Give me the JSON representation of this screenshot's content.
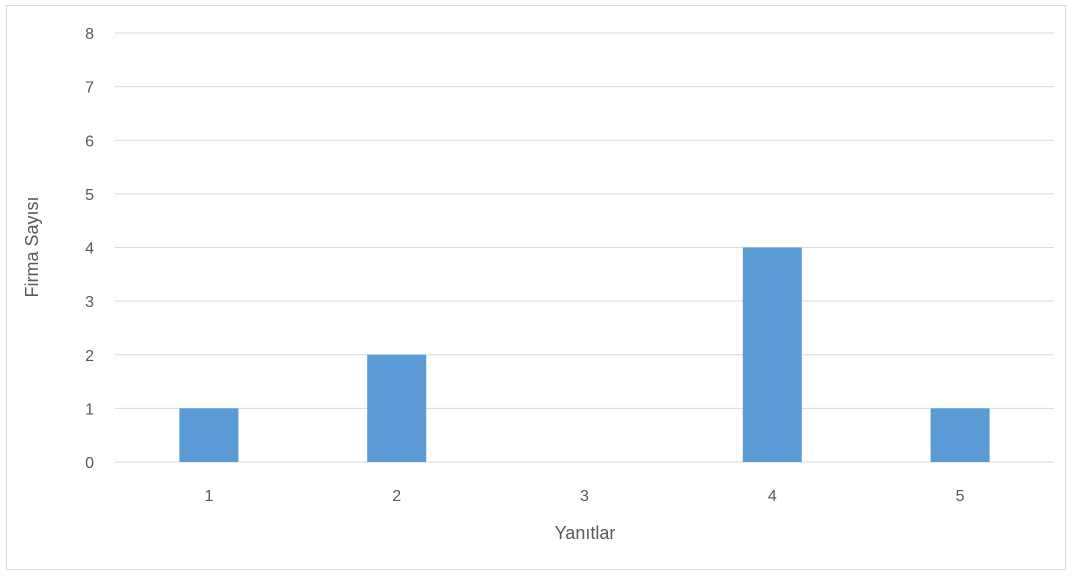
{
  "chart_data": {
    "type": "bar",
    "categories": [
      "1",
      "2",
      "3",
      "4",
      "5"
    ],
    "values": [
      1,
      2,
      0,
      4,
      1
    ],
    "title": "",
    "xlabel": "Yanıtlar",
    "ylabel": "Firma Sayısı",
    "ylim": [
      0,
      8
    ],
    "yticks": [
      "0",
      "1",
      "2",
      "3",
      "4",
      "5",
      "6",
      "7",
      "8"
    ],
    "grid": true,
    "legend": "none",
    "bar_color": "#5b9bd5",
    "grid_color": "#d9d9d9",
    "text_color": "#595959"
  }
}
